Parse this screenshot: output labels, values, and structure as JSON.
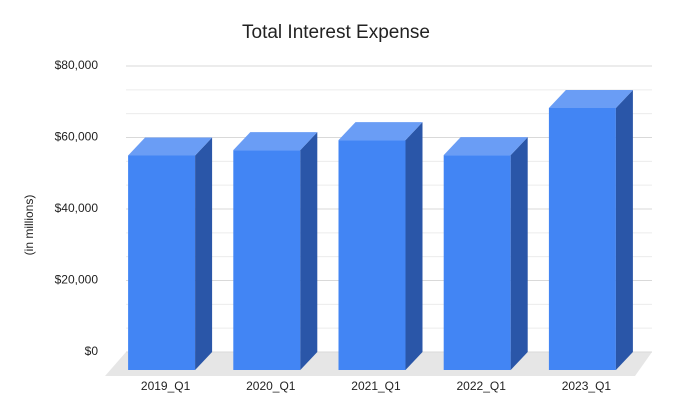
{
  "chart_data": {
    "type": "bar3d",
    "title": "Total Interest Expense",
    "y_label": "(in millions)",
    "categories": [
      "2019_Q1",
      "2020_Q1",
      "2021_Q1",
      "2022_Q1",
      "2023_Q1"
    ],
    "values": [
      60000,
      61500,
      64300,
      60100,
      73300
    ],
    "color": "#4285f4",
    "ylim": [
      0,
      80000
    ],
    "yticks": [
      {
        "value": 0,
        "label": "$0"
      },
      {
        "value": 20000,
        "label": "$20,000"
      },
      {
        "value": 40000,
        "label": "$40,000"
      },
      {
        "value": 60000,
        "label": "$60,000"
      },
      {
        "value": 80000,
        "label": "$80,000"
      }
    ],
    "grid": true,
    "minor_grid_divisions": 3
  }
}
